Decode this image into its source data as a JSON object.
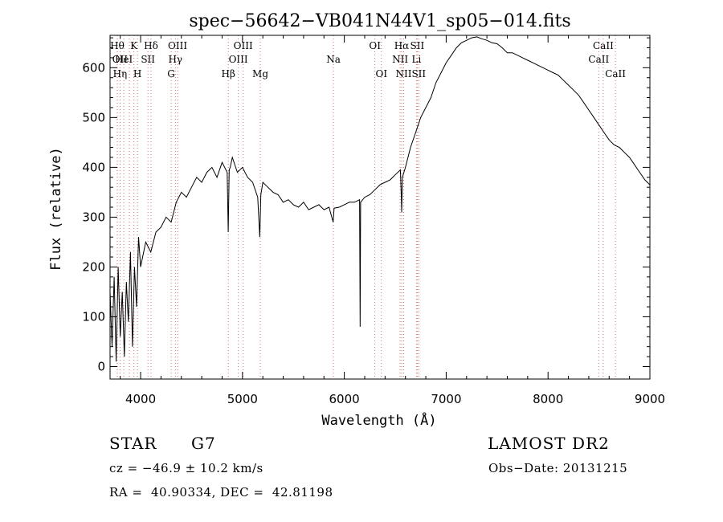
{
  "chart_data": {
    "type": "line",
    "title": "spec−56642−VB041N44V1_sp05−014.fits",
    "xlabel": "Wavelength (Å)",
    "ylabel": "Flux (relative)",
    "xlim": [
      3700,
      9000
    ],
    "ylim": [
      -25,
      665
    ],
    "xticks": [
      4000,
      5000,
      6000,
      7000,
      8000,
      9000
    ],
    "yticks": [
      0,
      100,
      200,
      300,
      400,
      500,
      600
    ],
    "grid": false,
    "line_color": "#000000",
    "marker_color": "#c87070",
    "series": [
      {
        "x": [
          3700,
          3720,
          3740,
          3760,
          3780,
          3800,
          3820,
          3840,
          3860,
          3880,
          3900,
          3920,
          3940,
          3960,
          3980,
          4000,
          4050,
          4100,
          4150,
          4200,
          4250,
          4300,
          4350,
          4400,
          4450,
          4500,
          4550,
          4600,
          4650,
          4700,
          4750,
          4800,
          4850,
          4860,
          4870,
          4880,
          4900,
          4950,
          5000,
          5050,
          5100,
          5150,
          5170,
          5180,
          5200,
          5250,
          5300,
          5350,
          5400,
          5450,
          5500,
          5550,
          5600,
          5650,
          5700,
          5750,
          5800,
          5850,
          5890,
          5900,
          5950,
          6000,
          6050,
          6100,
          6150,
          6155,
          6160,
          6200,
          6250,
          6300,
          6350,
          6400,
          6450,
          6500,
          6550,
          6560,
          6563,
          6570,
          6600,
          6650,
          6700,
          6750,
          6800,
          6850,
          6900,
          6950,
          7000,
          7050,
          7100,
          7150,
          7200,
          7250,
          7300,
          7350,
          7400,
          7450,
          7500,
          7550,
          7600,
          7650,
          7700,
          7750,
          7800,
          7850,
          7900,
          7950,
          8000,
          8050,
          8100,
          8150,
          8200,
          8250,
          8300,
          8350,
          8400,
          8450,
          8500,
          8550,
          8600,
          8650,
          8700,
          8750,
          8800,
          8850,
          8900,
          8950,
          9000
        ],
        "y": [
          150,
          40,
          180,
          10,
          200,
          60,
          150,
          20,
          170,
          90,
          230,
          40,
          200,
          120,
          260,
          200,
          250,
          230,
          270,
          280,
          300,
          290,
          330,
          350,
          340,
          360,
          380,
          370,
          390,
          400,
          380,
          410,
          390,
          270,
          395,
          400,
          420,
          390,
          400,
          380,
          370,
          340,
          260,
          345,
          370,
          360,
          350,
          345,
          330,
          335,
          325,
          320,
          330,
          315,
          320,
          325,
          315,
          320,
          290,
          318,
          320,
          325,
          330,
          330,
          335,
          80,
          330,
          340,
          345,
          355,
          365,
          370,
          375,
          385,
          395,
          340,
          310,
          380,
          400,
          440,
          470,
          500,
          520,
          540,
          570,
          590,
          610,
          625,
          640,
          650,
          655,
          660,
          662,
          658,
          655,
          650,
          648,
          640,
          630,
          630,
          625,
          620,
          615,
          610,
          605,
          600,
          595,
          590,
          585,
          575,
          565,
          555,
          545,
          530,
          515,
          500,
          485,
          470,
          455,
          445,
          440,
          430,
          420,
          405,
          390,
          375,
          365
        ]
      }
    ],
    "lines": [
      {
        "x": 3771,
        "color": "#c87070",
        "labels": [
          {
            "row": 0,
            "text": "Hθ"
          }
        ]
      },
      {
        "x": 3798,
        "color": "#c87070",
        "labels": [
          {
            "row": 1,
            "text": "OII"
          },
          {
            "row": 2,
            "text": "Hη"
          }
        ]
      },
      {
        "x": 3835,
        "color": "#c87070",
        "labels": [
          {
            "row": 1,
            "text": "HeI"
          }
        ]
      },
      {
        "x": 3889,
        "color": "#c87070",
        "labels": []
      },
      {
        "x": 3934,
        "color": "#c87070",
        "labels": [
          {
            "row": 0,
            "text": "K"
          }
        ]
      },
      {
        "x": 3969,
        "color": "#c87070",
        "labels": [
          {
            "row": 2,
            "text": "H"
          }
        ]
      },
      {
        "x": 4072,
        "color": "#c87070",
        "labels": [
          {
            "row": 1,
            "text": "SII"
          }
        ]
      },
      {
        "x": 4102,
        "color": "#c87070",
        "labels": [
          {
            "row": 0,
            "text": "Hδ"
          }
        ]
      },
      {
        "x": 4300,
        "color": "#c87070",
        "labels": [
          {
            "row": 2,
            "text": "G"
          }
        ]
      },
      {
        "x": 4341,
        "color": "#c87070",
        "labels": [
          {
            "row": 1,
            "text": "Hγ"
          }
        ]
      },
      {
        "x": 4363,
        "color": "#c87070",
        "labels": [
          {
            "row": 0,
            "text": "OIII"
          }
        ]
      },
      {
        "x": 4861,
        "color": "#c87070",
        "labels": [
          {
            "row": 2,
            "text": "Hβ"
          }
        ]
      },
      {
        "x": 4959,
        "color": "#c87070",
        "labels": [
          {
            "row": 1,
            "text": "OIII"
          }
        ]
      },
      {
        "x": 5007,
        "color": "#c87070",
        "labels": [
          {
            "row": 0,
            "text": "OIII"
          }
        ]
      },
      {
        "x": 5175,
        "color": "#c87070",
        "labels": [
          {
            "row": 2,
            "text": "Mg"
          }
        ]
      },
      {
        "x": 5893,
        "color": "#c87070",
        "labels": [
          {
            "row": 1,
            "text": "Na"
          }
        ]
      },
      {
        "x": 6300,
        "color": "#c87070",
        "labels": [
          {
            "row": 0,
            "text": "OI"
          }
        ]
      },
      {
        "x": 6364,
        "color": "#c87070",
        "labels": [
          {
            "row": 2,
            "text": "OI"
          }
        ]
      },
      {
        "x": 6548,
        "color": "#c87070",
        "labels": [
          {
            "row": 1,
            "text": "NII"
          }
        ]
      },
      {
        "x": 6563,
        "color": "#c87070",
        "labels": [
          {
            "row": 0,
            "text": "Hα"
          }
        ]
      },
      {
        "x": 6583,
        "color": "#c87070",
        "labels": [
          {
            "row": 2,
            "text": "NII"
          }
        ]
      },
      {
        "x": 6708,
        "color": "#c87070",
        "labels": [
          {
            "row": 1,
            "text": "Li"
          }
        ]
      },
      {
        "x": 6716,
        "color": "#c87070",
        "labels": [
          {
            "row": 0,
            "text": "SII"
          }
        ]
      },
      {
        "x": 6731,
        "color": "#c87070",
        "labels": [
          {
            "row": 2,
            "text": "SII"
          }
        ]
      },
      {
        "x": 8498,
        "color": "#c87070",
        "labels": [
          {
            "row": 1,
            "text": "CaII"
          }
        ]
      },
      {
        "x": 8542,
        "color": "#c87070",
        "labels": [
          {
            "row": 0,
            "text": "CaII"
          }
        ]
      },
      {
        "x": 8662,
        "color": "#c87070",
        "labels": [
          {
            "row": 2,
            "text": "CaII"
          }
        ]
      }
    ]
  },
  "info": {
    "class_label": "STAR",
    "subclass": "G7",
    "survey": "LAMOST DR2",
    "cz": "cz = −46.9 ± 10.2 km/s",
    "obs_date": "Obs−Date: 20131215",
    "coords": "RA =  40.90334, DEC =  42.81198"
  }
}
